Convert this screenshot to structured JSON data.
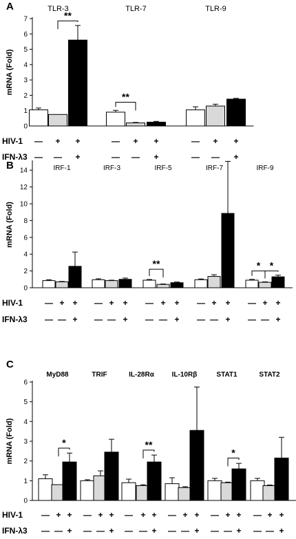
{
  "chart_data": [
    {
      "type": "bar",
      "panel": "A",
      "ylabel": "mRNA (Fold)",
      "ylim": [
        0,
        7
      ],
      "yticks": [
        0,
        1,
        2,
        3,
        4,
        5,
        6,
        7
      ],
      "groups": [
        {
          "name": "TLR-3",
          "values": [
            1.05,
            0.75,
            5.6
          ],
          "errors": [
            0.12,
            0.0,
            0.95
          ]
        },
        {
          "name": "TLR-7",
          "values": [
            0.9,
            0.2,
            0.25
          ],
          "errors": [
            0.12,
            0.03,
            0.05
          ]
        },
        {
          "name": "TLR-9",
          "values": [
            1.05,
            1.3,
            1.75
          ],
          "errors": [
            0.2,
            0.12,
            0.05
          ]
        }
      ],
      "colors": [
        "#ffffff",
        "#d9d9d9",
        "#000000"
      ],
      "annotations": [
        {
          "text": "**",
          "group": 0,
          "from": 1,
          "to": 2,
          "y": 6.85
        },
        {
          "text": "**",
          "group": 1,
          "from": 0,
          "to": 1,
          "y": 1.55
        }
      ],
      "conditions": [
        {
          "label": "HIV-1",
          "marks": [
            "—",
            "+",
            "+"
          ]
        },
        {
          "label": "IFN-λ3",
          "marks": [
            "—",
            "—",
            "+"
          ]
        }
      ]
    },
    {
      "type": "bar",
      "panel": "B",
      "ylabel": "mRNA (Fold)",
      "ylim": [
        0,
        15
      ],
      "yticks": [
        0,
        2,
        4,
        6,
        8,
        10,
        12,
        14
      ],
      "groups": [
        {
          "name": "IRF-1",
          "values": [
            0.85,
            0.7,
            2.55
          ],
          "errors": [
            0.1,
            0.05,
            1.7
          ]
        },
        {
          "name": "IRF-3",
          "values": [
            0.95,
            0.85,
            1.0
          ],
          "errors": [
            0.12,
            0.05,
            0.15
          ]
        },
        {
          "name": "IRF-5",
          "values": [
            0.9,
            0.4,
            0.6
          ],
          "errors": [
            0.08,
            0.05,
            0.08
          ]
        },
        {
          "name": "IRF-7",
          "values": [
            0.95,
            1.35,
            8.85
          ],
          "errors": [
            0.1,
            0.2,
            6.2
          ]
        },
        {
          "name": "IRF-9",
          "values": [
            0.9,
            0.65,
            1.3
          ],
          "errors": [
            0.1,
            0.05,
            0.2
          ]
        }
      ],
      "colors": [
        "#ffffff",
        "#d9d9d9",
        "#000000"
      ],
      "annotations": [
        {
          "text": "**",
          "group": 2,
          "from": 0,
          "to": 1,
          "y": 2.2
        },
        {
          "text": "*",
          "group": 4,
          "from": 0,
          "to": 1,
          "y": 2.0
        },
        {
          "text": "*",
          "group": 4,
          "from": 1,
          "to": 2,
          "y": 2.0
        }
      ],
      "conditions": [
        {
          "label": "HIV-1",
          "marks": [
            "—",
            "+",
            "+"
          ]
        },
        {
          "label": "IFN-λ3",
          "marks": [
            "—",
            "—",
            "+"
          ]
        }
      ]
    },
    {
      "type": "bar",
      "panel": "C",
      "ylabel": "mRNA (Fold)",
      "ylim": [
        0,
        6
      ],
      "yticks": [
        0,
        1,
        2,
        3,
        4,
        5,
        6
      ],
      "groups": [
        {
          "name": "MyD88",
          "values": [
            1.1,
            0.8,
            1.95
          ],
          "errors": [
            0.2,
            0.0,
            0.45
          ]
        },
        {
          "name": "TRIF",
          "values": [
            1.0,
            1.25,
            2.45
          ],
          "errors": [
            0.05,
            0.25,
            0.65
          ]
        },
        {
          "name": "IL-28Rα",
          "values": [
            0.9,
            0.75,
            1.95
          ],
          "errors": [
            0.18,
            0.05,
            0.35
          ]
        },
        {
          "name": "IL-10Rβ",
          "values": [
            0.85,
            0.65,
            3.55
          ],
          "errors": [
            0.3,
            0.05,
            2.2
          ]
        },
        {
          "name": "STAT1",
          "values": [
            1.0,
            0.9,
            1.6
          ],
          "errors": [
            0.12,
            0.03,
            0.28
          ]
        },
        {
          "name": "STAT2",
          "values": [
            1.0,
            0.75,
            2.15
          ],
          "errors": [
            0.12,
            0.03,
            1.05
          ]
        }
      ],
      "colors": [
        "#ffffff",
        "#d9d9d9",
        "#000000"
      ],
      "annotations": [
        {
          "text": "*",
          "group": 0,
          "from": 1,
          "to": 2,
          "y": 2.65
        },
        {
          "text": "**",
          "group": 2,
          "from": 1,
          "to": 2,
          "y": 2.55
        },
        {
          "text": "*",
          "group": 4,
          "from": 1,
          "to": 2,
          "y": 2.15
        }
      ],
      "conditions": [
        {
          "label": "HIV-1",
          "marks": [
            "—",
            "+",
            "+"
          ]
        },
        {
          "label": "IFN-λ3",
          "marks": [
            "—",
            "—",
            "+"
          ]
        }
      ]
    }
  ]
}
